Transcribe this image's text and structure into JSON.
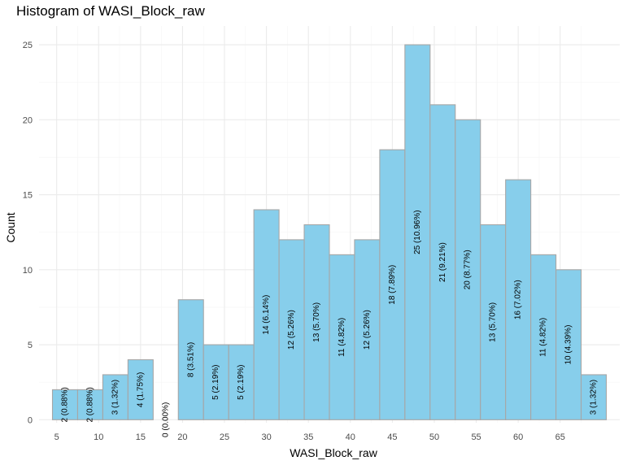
{
  "chart_data": {
    "type": "bar",
    "title": "Histogram of WASI_Block_raw",
    "xlabel": "WASI_Block_raw",
    "ylabel": "Count",
    "bin_width": 3,
    "bins": [
      {
        "start": 4.5,
        "end": 7.5,
        "count": 2,
        "label": "2 (0.88%)"
      },
      {
        "start": 7.5,
        "end": 10.5,
        "count": 2,
        "label": "2 (0.88%)"
      },
      {
        "start": 10.5,
        "end": 13.5,
        "count": 3,
        "label": "3 (1.32%)"
      },
      {
        "start": 13.5,
        "end": 16.5,
        "count": 4,
        "label": "4 (1.75%)"
      },
      {
        "start": 16.5,
        "end": 19.5,
        "count": 0,
        "label": "0 (0.00%)"
      },
      {
        "start": 19.5,
        "end": 22.5,
        "count": 8,
        "label": "8 (3.51%)"
      },
      {
        "start": 22.5,
        "end": 25.5,
        "count": 5,
        "label": "5 (2.19%)"
      },
      {
        "start": 25.5,
        "end": 28.5,
        "count": 5,
        "label": "5 (2.19%)"
      },
      {
        "start": 28.5,
        "end": 31.5,
        "count": 14,
        "label": "14 (6.14%)"
      },
      {
        "start": 31.5,
        "end": 34.5,
        "count": 12,
        "label": "12 (5.26%)"
      },
      {
        "start": 34.5,
        "end": 37.5,
        "count": 13,
        "label": "13 (5.70%)"
      },
      {
        "start": 37.5,
        "end": 40.5,
        "count": 11,
        "label": "11 (4.82%)"
      },
      {
        "start": 40.5,
        "end": 43.5,
        "count": 12,
        "label": "12 (5.26%)"
      },
      {
        "start": 43.5,
        "end": 46.5,
        "count": 18,
        "label": "18 (7.89%)"
      },
      {
        "start": 46.5,
        "end": 49.5,
        "count": 25,
        "label": "25 (10.96%)"
      },
      {
        "start": 49.5,
        "end": 52.5,
        "count": 21,
        "label": "21 (9.21%)"
      },
      {
        "start": 52.5,
        "end": 55.5,
        "count": 20,
        "label": "20 (8.77%)"
      },
      {
        "start": 55.5,
        "end": 58.5,
        "count": 13,
        "label": "13 (5.70%)"
      },
      {
        "start": 58.5,
        "end": 61.5,
        "count": 16,
        "label": "16 (7.02%)"
      },
      {
        "start": 61.5,
        "end": 64.5,
        "count": 11,
        "label": "11 (4.82%)"
      },
      {
        "start": 64.5,
        "end": 67.5,
        "count": 10,
        "label": "10 (4.39%)"
      },
      {
        "start": 67.5,
        "end": 70.5,
        "count": 3,
        "label": "3 (1.32%)"
      }
    ],
    "x_ticks": [
      5,
      10,
      15,
      20,
      25,
      30,
      35,
      40,
      45,
      50,
      55,
      60,
      65
    ],
    "y_ticks": [
      0,
      5,
      10,
      15,
      20,
      25
    ],
    "xlim": [
      2.9,
      72.1
    ],
    "ylim": [
      -0.2,
      26.25
    ],
    "grid": true,
    "legend": "none",
    "colors": {
      "bar_fill": "#87CEEB",
      "bar_stroke": "#A6A6A6",
      "grid_major": "#EBEBEB",
      "grid_minor": "#F5F5F5",
      "tick_text": "#4D4D4D"
    }
  }
}
